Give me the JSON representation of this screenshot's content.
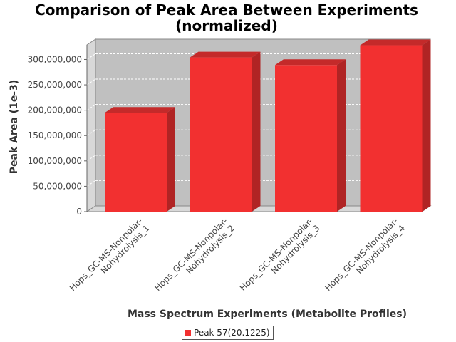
{
  "chart_data": {
    "type": "bar",
    "title_lines": [
      "Comparison of Peak Area Between Experiments",
      "(normalized)"
    ],
    "xlabel": "Mass Spectrum Experiments (Metabolite Profiles)",
    "ylabel": "Peak Area (1e-3)",
    "categories": [
      [
        "Hops_GC-MS-Nonpolar-",
        "Nohydrolysis_1"
      ],
      [
        "Hops_GC-MS-Nonpolar-",
        "Nohydrolysis_2"
      ],
      [
        "Hops_GC-MS-Nonpolar-",
        "Nohydrolysis_3"
      ],
      [
        "Hops_GC-MS-Nonpolar-",
        "Nohydrolysis_4"
      ]
    ],
    "series": [
      {
        "name": "Peak 57(20.1225)",
        "values": [
          195000000,
          304000000,
          289000000,
          328000000
        ]
      }
    ],
    "ylim": [
      0,
      340000000
    ],
    "yticks": [
      {
        "value": 0,
        "label": "0"
      },
      {
        "value": 50000000,
        "label": "50,000,000"
      },
      {
        "value": 100000000,
        "label": "100,000,000"
      },
      {
        "value": 150000000,
        "label": "150,000,000"
      },
      {
        "value": 200000000,
        "label": "200,000,000"
      },
      {
        "value": 250000000,
        "label": "250,000,000"
      },
      {
        "value": 300000000,
        "label": "300,000,000"
      }
    ],
    "grid": true,
    "legend_position": "bottom",
    "colors": {
      "bar_front": "#f23030",
      "bar_top": "#c42a2a",
      "bar_side": "#b02424",
      "plot_background": "#c0c0c0",
      "plot_wall": "#d8d8d8"
    }
  }
}
